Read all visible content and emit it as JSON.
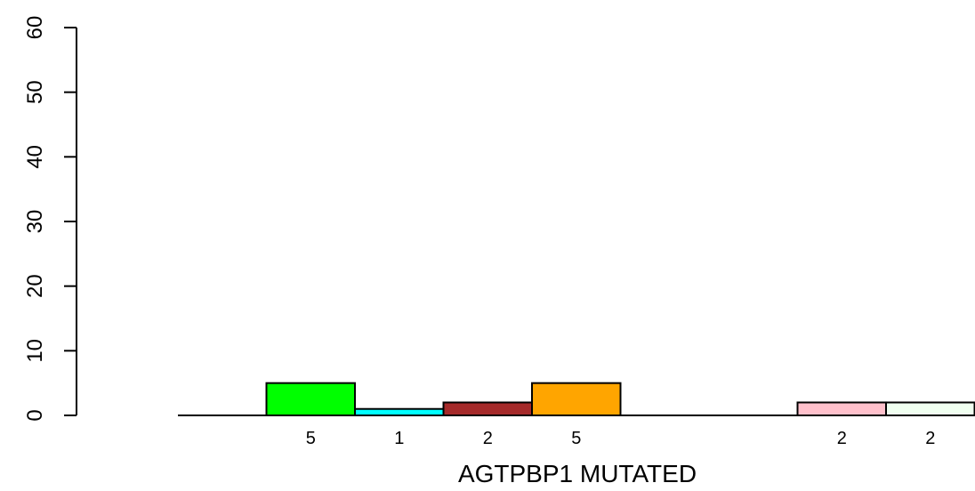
{
  "chart_data": {
    "type": "bar",
    "xlabel": "AGTPBP1 MUTATED",
    "ylabel": "",
    "ylim": [
      0,
      60
    ],
    "yticks": [
      0,
      10,
      20,
      30,
      40,
      50,
      60
    ],
    "grid": false,
    "bars": [
      {
        "slot": 1,
        "value": 5,
        "label": "5",
        "color": "#00ff00"
      },
      {
        "slot": 2,
        "value": 1,
        "label": "1",
        "color": "#00ffff"
      },
      {
        "slot": 3,
        "value": 2,
        "label": "2",
        "color": "#a52a2a"
      },
      {
        "slot": 4,
        "value": 5,
        "label": "5",
        "color": "#ffa500"
      },
      {
        "slot": 7,
        "value": 2,
        "label": "2",
        "color": "#ffc0cb"
      },
      {
        "slot": 8,
        "value": 2,
        "label": "2",
        "color": "#f0fff0"
      }
    ]
  }
}
